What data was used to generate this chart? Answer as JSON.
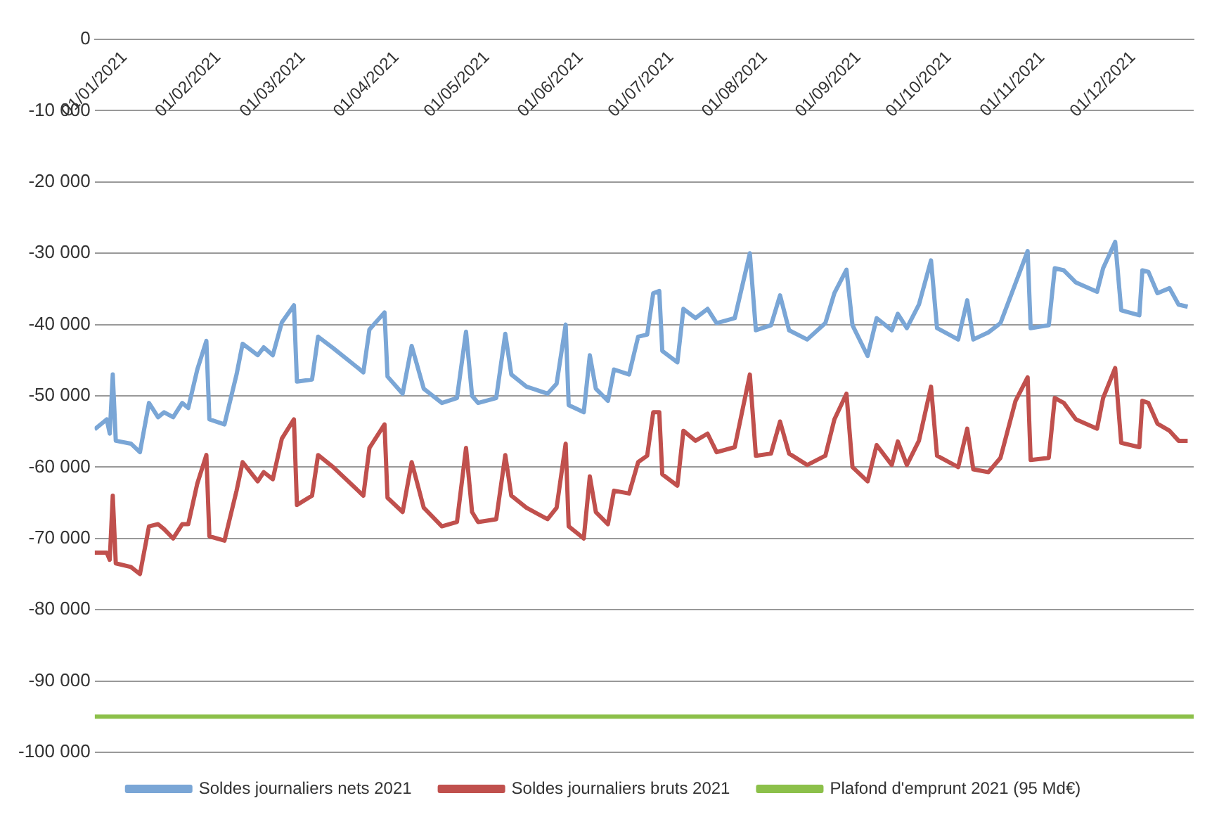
{
  "chart_data": {
    "type": "line",
    "x": [
      "2021-01-01",
      "2021-01-05",
      "2021-01-06",
      "2021-01-07",
      "2021-01-08",
      "2021-01-13",
      "2021-01-16",
      "2021-01-19",
      "2021-01-22",
      "2021-01-24",
      "2021-01-27",
      "2021-01-30",
      "2021-02-01",
      "2021-02-04",
      "2021-02-07",
      "2021-02-08",
      "2021-02-13",
      "2021-02-17",
      "2021-02-19",
      "2021-02-24",
      "2021-02-26",
      "2021-03-01",
      "2021-03-04",
      "2021-03-08",
      "2021-03-09",
      "2021-03-14",
      "2021-03-16",
      "2021-03-21",
      "2021-03-31",
      "2021-04-02",
      "2021-04-07",
      "2021-04-08",
      "2021-04-13",
      "2021-04-16",
      "2021-04-20",
      "2021-04-26",
      "2021-05-01",
      "2021-05-04",
      "2021-05-06",
      "2021-05-08",
      "2021-05-14",
      "2021-05-17",
      "2021-05-19",
      "2021-05-24",
      "2021-05-31",
      "2021-06-03",
      "2021-06-06",
      "2021-06-07",
      "2021-06-12",
      "2021-06-14",
      "2021-06-16",
      "2021-06-20",
      "2021-06-22",
      "2021-06-27",
      "2021-06-30",
      "2021-07-03",
      "2021-07-05",
      "2021-07-07",
      "2021-07-08",
      "2021-07-13",
      "2021-07-15",
      "2021-07-19",
      "2021-07-23",
      "2021-07-26",
      "2021-08-01",
      "2021-08-06",
      "2021-08-08",
      "2021-08-13",
      "2021-08-16",
      "2021-08-19",
      "2021-08-25",
      "2021-08-31",
      "2021-09-03",
      "2021-09-07",
      "2021-09-09",
      "2021-09-14",
      "2021-09-17",
      "2021-09-22",
      "2021-09-24",
      "2021-09-27",
      "2021-10-01",
      "2021-10-05",
      "2021-10-07",
      "2021-10-14",
      "2021-10-17",
      "2021-10-19",
      "2021-10-24",
      "2021-10-28",
      "2021-11-02",
      "2021-11-06",
      "2021-11-07",
      "2021-11-13",
      "2021-11-15",
      "2021-11-18",
      "2021-11-22",
      "2021-11-29",
      "2021-12-01",
      "2021-12-05",
      "2021-12-07",
      "2021-12-13",
      "2021-12-14",
      "2021-12-16",
      "2021-12-19",
      "2021-12-23",
      "2021-12-26",
      "2021-12-29"
    ],
    "series": [
      {
        "name": "Soldes journaliers nets 2021",
        "color": "#7aa6d6",
        "values": [
          -54700,
          -53300,
          -55300,
          -47000,
          -56300,
          -56700,
          -57900,
          -51000,
          -53000,
          -52300,
          -53000,
          -51000,
          -51700,
          -46300,
          -42300,
          -53300,
          -54000,
          -47000,
          -42700,
          -44300,
          -43200,
          -44300,
          -39700,
          -37300,
          -48000,
          -47700,
          -41700,
          -43300,
          -46700,
          -40700,
          -38300,
          -47300,
          -49700,
          -43000,
          -49000,
          -51000,
          -50300,
          -41000,
          -50000,
          -51000,
          -50300,
          -41300,
          -47000,
          -48700,
          -49700,
          -48300,
          -40000,
          -51300,
          -52300,
          -44300,
          -49000,
          -50700,
          -46300,
          -47000,
          -41700,
          -41400,
          -35600,
          -35300,
          -43700,
          -45300,
          -37800,
          -39100,
          -37800,
          -39800,
          -39100,
          -30000,
          -40800,
          -40100,
          -35900,
          -40800,
          -42100,
          -39800,
          -35600,
          -32300,
          -40100,
          -44400,
          -39100,
          -40800,
          -38500,
          -40500,
          -37200,
          -31000,
          -40500,
          -42100,
          -36600,
          -42100,
          -41100,
          -39800,
          -34200,
          -29700,
          -40500,
          -40100,
          -32100,
          -32400,
          -34100,
          -35400,
          -32100,
          -28400,
          -38000,
          -38700,
          -32400,
          -32600,
          -35600,
          -34900,
          -37200,
          -37500
        ]
      },
      {
        "name": "Soldes journaliers bruts 2021",
        "color": "#c0504d",
        "values": [
          -72000,
          -72000,
          -73000,
          -64000,
          -73500,
          -74000,
          -75000,
          -68300,
          -68000,
          -68700,
          -70000,
          -68000,
          -68000,
          -62300,
          -58300,
          -69700,
          -70300,
          -63300,
          -59300,
          -62000,
          -60700,
          -61700,
          -56000,
          -53300,
          -65300,
          -64000,
          -58300,
          -60000,
          -64000,
          -57300,
          -54000,
          -64300,
          -66300,
          -59300,
          -65700,
          -68300,
          -67700,
          -57300,
          -66300,
          -67700,
          -67300,
          -58300,
          -64000,
          -65700,
          -67300,
          -65700,
          -56700,
          -68300,
          -70000,
          -61300,
          -66300,
          -68000,
          -63300,
          -63700,
          -59300,
          -58400,
          -52300,
          -52300,
          -61000,
          -62600,
          -54900,
          -56300,
          -55300,
          -57900,
          -57200,
          -47000,
          -58400,
          -58100,
          -53600,
          -58100,
          -59700,
          -58400,
          -53300,
          -49700,
          -60000,
          -62000,
          -56900,
          -59700,
          -56400,
          -59700,
          -56300,
          -48700,
          -58400,
          -60000,
          -54600,
          -60300,
          -60700,
          -58700,
          -50700,
          -47400,
          -59000,
          -58700,
          -50300,
          -51000,
          -53300,
          -54600,
          -50300,
          -46100,
          -56600,
          -57200,
          -50700,
          -51000,
          -53900,
          -54900,
          -56300,
          -56300
        ]
      },
      {
        "name": "Plafond d'emprunt 2021 (95 Md€)",
        "color": "#8cc04a",
        "x": [
          "2021-01-01",
          "2021-12-31"
        ],
        "values": [
          -95000,
          -95000
        ]
      }
    ],
    "xlim": [
      "2021-01-01",
      "2021-12-31"
    ],
    "xticks": [
      {
        "value": "2021-01-01",
        "label": "01/01/2021"
      },
      {
        "value": "2021-02-01",
        "label": "01/02/2021"
      },
      {
        "value": "2021-03-01",
        "label": "01/03/2021"
      },
      {
        "value": "2021-04-01",
        "label": "01/04/2021"
      },
      {
        "value": "2021-05-01",
        "label": "01/05/2021"
      },
      {
        "value": "2021-06-01",
        "label": "01/06/2021"
      },
      {
        "value": "2021-07-01",
        "label": "01/07/2021"
      },
      {
        "value": "2021-08-01",
        "label": "01/08/2021"
      },
      {
        "value": "2021-09-01",
        "label": "01/09/2021"
      },
      {
        "value": "2021-10-01",
        "label": "01/10/2021"
      },
      {
        "value": "2021-11-01",
        "label": "01/11/2021"
      },
      {
        "value": "2021-12-01",
        "label": "01/12/2021"
      }
    ],
    "ylim": [
      -100000,
      0
    ],
    "yticks": [
      0,
      {
        "value": -10000,
        "label": "-10 000"
      },
      {
        "value": -20000,
        "label": "-20 000"
      },
      {
        "value": -30000,
        "label": "-30 000"
      },
      {
        "value": -40000,
        "label": "-40 000"
      },
      {
        "value": -50000,
        "label": "-50 000"
      },
      {
        "value": -60000,
        "label": "-60 000"
      },
      {
        "value": -70000,
        "label": "-70 000"
      },
      {
        "value": -80000,
        "label": "-80 000"
      },
      {
        "value": -90000,
        "label": "-90 000"
      },
      {
        "value": -100000,
        "label": "-100 000"
      }
    ],
    "grid": "y",
    "legend": "bottom",
    "marker": "none",
    "line_style": "solid"
  }
}
